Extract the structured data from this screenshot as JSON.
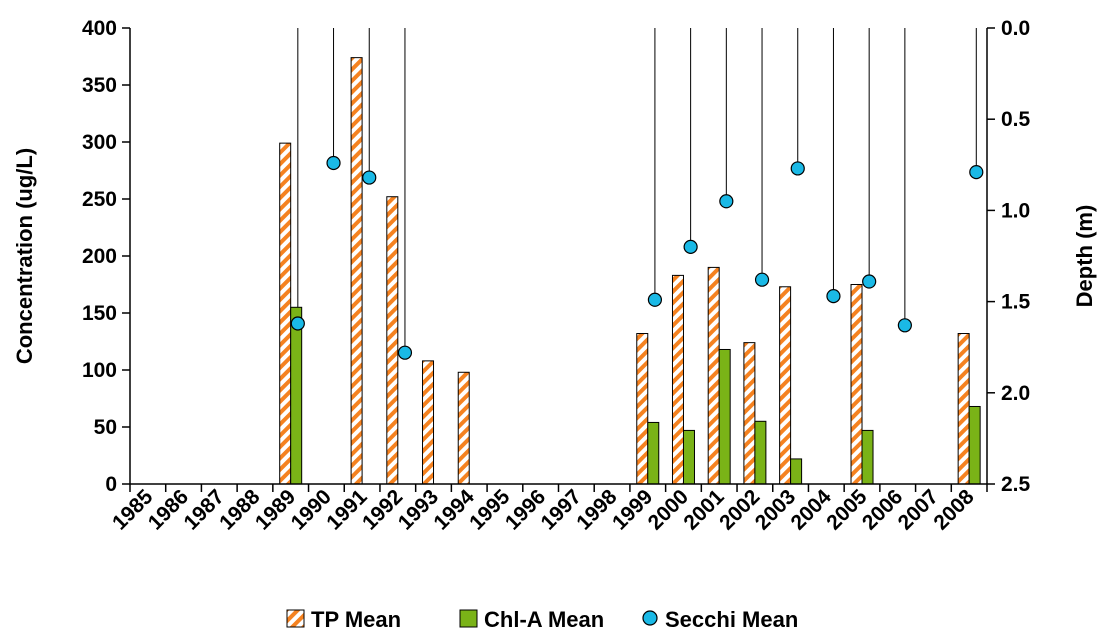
{
  "chart_data": {
    "type": "bar",
    "categories": [
      "1985",
      "1986",
      "1987",
      "1988",
      "1989",
      "1990",
      "1991",
      "1992",
      "1993",
      "1994",
      "1995",
      "1996",
      "1997",
      "1998",
      "1999",
      "2000",
      "2001",
      "2002",
      "2003",
      "2004",
      "2005",
      "2006",
      "2007",
      "2008"
    ],
    "ylabel": "Concentration (ug/L)",
    "y2label": "Depth (m)",
    "ylim": [
      0,
      400
    ],
    "yticks": [
      "0",
      "50",
      "100",
      "150",
      "200",
      "250",
      "300",
      "350",
      "400"
    ],
    "y2lim": [
      0,
      2.5
    ],
    "y2_inverted": true,
    "y2ticks": [
      "0.0",
      "0.5",
      "1.0",
      "1.5",
      "2.0",
      "2.5"
    ],
    "grid": false,
    "legend_position": "bottom",
    "series": [
      {
        "name": "TP Mean",
        "kind": "bar",
        "pattern": "diagonal-stripes",
        "color": "#f58220",
        "values": [
          null,
          null,
          null,
          null,
          299,
          null,
          374,
          252,
          108,
          98,
          null,
          null,
          null,
          null,
          132,
          183,
          190,
          124,
          173,
          null,
          175,
          null,
          null,
          132
        ]
      },
      {
        "name": "Chl-A Mean",
        "kind": "bar",
        "color": "#7ab317",
        "values": [
          null,
          null,
          null,
          null,
          155,
          null,
          null,
          null,
          null,
          null,
          null,
          null,
          null,
          null,
          54,
          47,
          118,
          55,
          22,
          null,
          47,
          null,
          null,
          68
        ]
      },
      {
        "name": "Secchi Mean",
        "kind": "scatter",
        "axis": "y2",
        "color": "#1ab9e6",
        "values": [
          null,
          null,
          null,
          null,
          1.62,
          0.74,
          0.82,
          1.78,
          null,
          null,
          null,
          null,
          null,
          null,
          1.49,
          1.2,
          0.95,
          1.38,
          0.77,
          1.47,
          1.39,
          1.63,
          null,
          0.79
        ]
      }
    ],
    "secchi_drop_lines": [
      1989,
      1990,
      1991,
      1992,
      1999,
      2000,
      2001,
      2002,
      2003,
      2004,
      2005,
      2006,
      2008
    ]
  }
}
